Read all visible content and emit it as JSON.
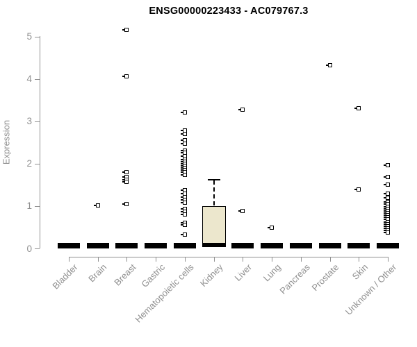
{
  "chart_data": {
    "type": "boxplot",
    "title": "ENSG00000223433 - AC079767.3",
    "ylabel": "Expression",
    "xlabel": "",
    "ylim": [
      0,
      5
    ],
    "yticks": [
      0,
      1,
      2,
      3,
      4,
      5
    ],
    "grid": false,
    "legend": "none",
    "categories": [
      "Bladder",
      "Brain",
      "Breast",
      "Gastric",
      "Hematopoietic cells",
      "Kidney",
      "Liver",
      "Lung",
      "Pancreas",
      "Prostate",
      "Skin",
      "Unknown / Other"
    ],
    "boxes": [
      {
        "category": "Bladder",
        "whisker_low": 0,
        "q1": 0,
        "median": 0,
        "q3": 0,
        "whisker_high": 0
      },
      {
        "category": "Brain",
        "whisker_low": 0,
        "q1": 0,
        "median": 0,
        "q3": 0,
        "whisker_high": 0
      },
      {
        "category": "Breast",
        "whisker_low": 0,
        "q1": 0,
        "median": 0,
        "q3": 0,
        "whisker_high": 0
      },
      {
        "category": "Gastric",
        "whisker_low": 0,
        "q1": 0,
        "median": 0,
        "q3": 0,
        "whisker_high": 0
      },
      {
        "category": "Hematopoietic cells",
        "whisker_low": 0,
        "q1": 0,
        "median": 0,
        "q3": 0,
        "whisker_high": 0
      },
      {
        "category": "Kidney",
        "whisker_low": 0,
        "q1": 0,
        "median": 0,
        "q3": 1.0,
        "whisker_high": 1.62
      },
      {
        "category": "Liver",
        "whisker_low": 0,
        "q1": 0,
        "median": 0,
        "q3": 0,
        "whisker_high": 0
      },
      {
        "category": "Lung",
        "whisker_low": 0,
        "q1": 0,
        "median": 0,
        "q3": 0,
        "whisker_high": 0
      },
      {
        "category": "Pancreas",
        "whisker_low": 0,
        "q1": 0,
        "median": 0,
        "q3": 0,
        "whisker_high": 0
      },
      {
        "category": "Prostate",
        "whisker_low": 0,
        "q1": 0,
        "median": 0,
        "q3": 0,
        "whisker_high": 0
      },
      {
        "category": "Skin",
        "whisker_low": 0,
        "q1": 0,
        "median": 0,
        "q3": 0,
        "whisker_high": 0
      },
      {
        "category": "Unknown / Other",
        "whisker_low": 0,
        "q1": 0,
        "median": 0,
        "q3": 0,
        "whisker_high": 0
      }
    ],
    "outlier_points": [
      [],
      [
        1.02
      ],
      [
        5.16,
        4.06,
        1.8,
        1.68,
        1.62,
        1.57,
        1.04
      ],
      [],
      [
        3.21,
        2.78,
        2.7,
        2.56,
        2.48,
        2.31,
        2.26,
        2.18,
        2.1,
        2.05,
        2.0,
        1.95,
        1.9,
        1.85,
        1.8,
        1.74,
        1.38,
        1.3,
        1.22,
        1.15,
        1.08,
        0.93,
        0.87,
        0.81,
        0.61,
        0.55,
        0.33
      ],
      [],
      [
        3.27,
        0.88
      ],
      [
        0.49
      ],
      [],
      [
        4.32
      ],
      [
        3.31,
        1.4
      ],
      [
        1.96,
        1.69,
        1.5,
        1.3,
        1.2,
        1.09,
        1.04,
        0.99,
        0.94,
        0.89,
        0.84,
        0.79,
        0.73,
        0.68,
        0.63,
        0.58,
        0.53,
        0.48,
        0.43,
        0.38
      ]
    ],
    "colors": {
      "axis": "#8f8f8f",
      "text": "#8f8f8f",
      "title": "#000000",
      "point": "#000000",
      "box_fill": "#ECE7CD",
      "box_border": "#000000"
    }
  }
}
